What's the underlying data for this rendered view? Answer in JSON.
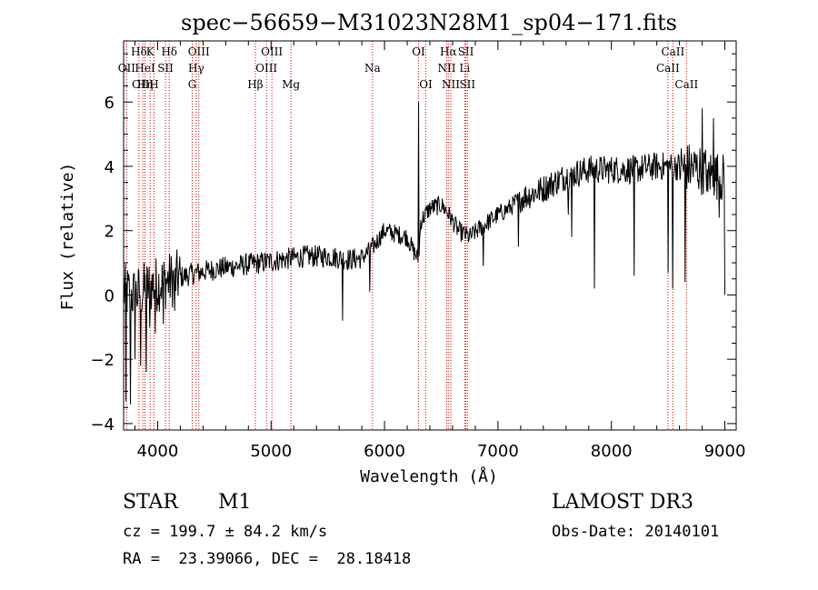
{
  "chart_data": {
    "type": "line",
    "title": "spec−56659−M31023N28M1_sp04−171.fits",
    "xlabel": "Wavelength (Å)",
    "ylabel": "Flux (relative)",
    "xlim": [
      3700,
      9100
    ],
    "ylim": [
      -4.2,
      7.9
    ],
    "xticks": [
      4000,
      5000,
      6000,
      7000,
      8000,
      9000
    ],
    "yticks": [
      -4,
      -2,
      0,
      2,
      4,
      6
    ],
    "xtick_labels": [
      "4000",
      "5000",
      "6000",
      "7000",
      "8000",
      "9000"
    ],
    "ytick_labels": [
      "−4",
      "−2",
      "0",
      "2",
      "4",
      "6"
    ],
    "line_color": "#000000",
    "marker_color": "#cc0000",
    "spectrum_anchor_points": [
      {
        "x": 3700,
        "y": 0.1
      },
      {
        "x": 3800,
        "y": 0.0
      },
      {
        "x": 3950,
        "y": 0.3
      },
      {
        "x": 4100,
        "y": 0.45
      },
      {
        "x": 4300,
        "y": 0.65
      },
      {
        "x": 4500,
        "y": 0.8
      },
      {
        "x": 4700,
        "y": 0.9
      },
      {
        "x": 4900,
        "y": 1.0
      },
      {
        "x": 5100,
        "y": 1.1
      },
      {
        "x": 5300,
        "y": 1.2
      },
      {
        "x": 5500,
        "y": 1.2
      },
      {
        "x": 5700,
        "y": 1.1
      },
      {
        "x": 5800,
        "y": 1.15
      },
      {
        "x": 5900,
        "y": 1.5
      },
      {
        "x": 6000,
        "y": 2.0
      },
      {
        "x": 6100,
        "y": 1.9
      },
      {
        "x": 6200,
        "y": 1.8
      },
      {
        "x": 6250,
        "y": 1.4
      },
      {
        "x": 6300,
        "y": 1.1
      },
      {
        "x": 6320,
        "y": 2.3
      },
      {
        "x": 6400,
        "y": 2.7
      },
      {
        "x": 6500,
        "y": 2.8
      },
      {
        "x": 6550,
        "y": 2.6
      },
      {
        "x": 6650,
        "y": 2.0
      },
      {
        "x": 6750,
        "y": 1.8
      },
      {
        "x": 6850,
        "y": 2.1
      },
      {
        "x": 7000,
        "y": 2.5
      },
      {
        "x": 7100,
        "y": 2.7
      },
      {
        "x": 7200,
        "y": 3.0
      },
      {
        "x": 7400,
        "y": 3.3
      },
      {
        "x": 7600,
        "y": 3.7
      },
      {
        "x": 7800,
        "y": 3.9
      },
      {
        "x": 8000,
        "y": 3.9
      },
      {
        "x": 8200,
        "y": 3.9
      },
      {
        "x": 8400,
        "y": 4.0
      },
      {
        "x": 8600,
        "y": 4.0
      },
      {
        "x": 8800,
        "y": 3.9
      },
      {
        "x": 9000,
        "y": 3.6
      }
    ],
    "spectrum_spikes": [
      {
        "x": 3720,
        "y": -3.3
      },
      {
        "x": 3760,
        "y": -3.4
      },
      {
        "x": 3800,
        "y": -2.0
      },
      {
        "x": 3850,
        "y": -2.2
      },
      {
        "x": 3900,
        "y": -2.4
      },
      {
        "x": 3930,
        "y": -1.0
      },
      {
        "x": 3980,
        "y": -1.2
      },
      {
        "x": 4050,
        "y": -0.9
      },
      {
        "x": 4150,
        "y": -0.5
      },
      {
        "x": 5630,
        "y": -0.8
      },
      {
        "x": 5870,
        "y": 0.1
      },
      {
        "x": 6300,
        "y": 6.0
      },
      {
        "x": 6870,
        "y": 0.9
      },
      {
        "x": 7180,
        "y": 1.5
      },
      {
        "x": 7620,
        "y": 2.5
      },
      {
        "x": 7650,
        "y": 1.8
      },
      {
        "x": 7850,
        "y": 0.2
      },
      {
        "x": 8200,
        "y": 0.6
      },
      {
        "x": 8500,
        "y": 0.7
      },
      {
        "x": 8540,
        "y": 0.2
      },
      {
        "x": 8650,
        "y": 0.4
      },
      {
        "x": 8800,
        "y": 5.8
      },
      {
        "x": 8850,
        "y": 3.2
      },
      {
        "x": 8900,
        "y": 5.5
      },
      {
        "x": 8950,
        "y": 2.4
      },
      {
        "x": 9000,
        "y": 0.0
      }
    ],
    "line_markers": [
      {
        "label": "Hδ",
        "x": 3835,
        "row": 0
      },
      {
        "label": "OII",
        "x": 3727,
        "row": 1
      },
      {
        "label": "OIII",
        "x": 3869,
        "row": 2
      },
      {
        "label": "HeI",
        "x": 3889,
        "row": 1
      },
      {
        "label": "Hη",
        "x": 3889,
        "row": 2
      },
      {
        "label": "K",
        "x": 3934,
        "row": 0
      },
      {
        "label": "H",
        "x": 3968,
        "row": 2
      },
      {
        "label": "SII",
        "x": 4069,
        "row": 1
      },
      {
        "label": "Hδ",
        "x": 4102,
        "row": 0
      },
      {
        "label": "OIII",
        "x": 4363,
        "row": 0
      },
      {
        "label": "Hγ",
        "x": 4340,
        "row": 1
      },
      {
        "label": "G",
        "x": 4305,
        "row": 2
      },
      {
        "label": "Hβ",
        "x": 4861,
        "row": 2
      },
      {
        "label": "OIII",
        "x": 5007,
        "row": 0
      },
      {
        "label": "OIII",
        "x": 4959,
        "row": 1
      },
      {
        "label": "Mg",
        "x": 5175,
        "row": 2
      },
      {
        "label": "Na",
        "x": 5894,
        "row": 1
      },
      {
        "label": "OI",
        "x": 6300,
        "row": 0
      },
      {
        "label": "OI",
        "x": 6364,
        "row": 2
      },
      {
        "label": "Hα",
        "x": 6563,
        "row": 0
      },
      {
        "label": "NII",
        "x": 6548,
        "row": 1
      },
      {
        "label": "NII",
        "x": 6584,
        "row": 2
      },
      {
        "label": "SII",
        "x": 6717,
        "row": 0
      },
      {
        "label": "Li",
        "x": 6707,
        "row": 1
      },
      {
        "label": "SII",
        "x": 6731,
        "row": 2
      },
      {
        "label": "CaII",
        "x": 8542,
        "row": 0
      },
      {
        "label": "CaII",
        "x": 8498,
        "row": 1
      },
      {
        "label": "CaII",
        "x": 8662,
        "row": 2
      }
    ]
  },
  "info": {
    "object_class": "STAR",
    "subclass": "M1",
    "survey": "LAMOST DR3",
    "cz_text": "cz = 199.7 ± 84.2 km/s",
    "obs_date_text": "Obs-Date: 20140101",
    "radec_text": "RA =  23.39066, DEC =  28.18418"
  }
}
